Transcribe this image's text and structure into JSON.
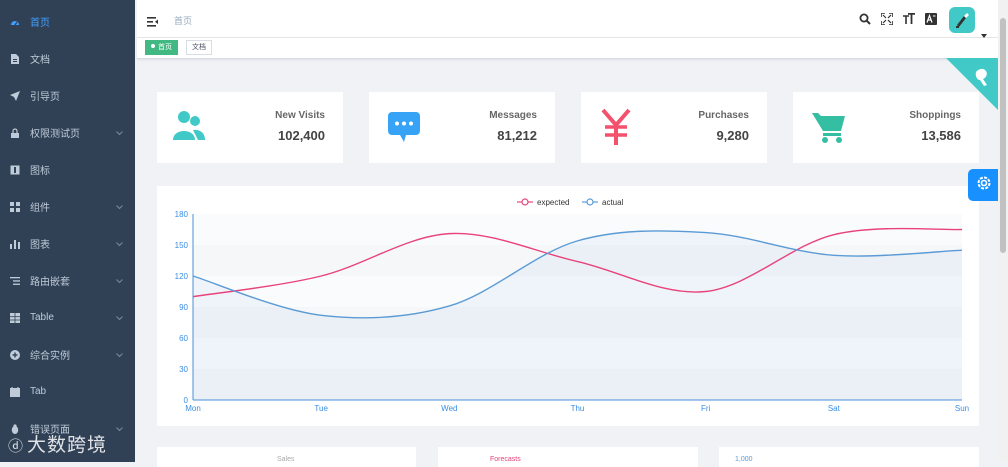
{
  "sidebar": {
    "items": [
      {
        "label": "首页",
        "icon": "dashboard-icon"
      },
      {
        "label": "文档",
        "icon": "document-icon"
      },
      {
        "label": "引导页",
        "icon": "guide-icon"
      },
      {
        "label": "权限测试页",
        "icon": "lock-icon"
      },
      {
        "label": "图标",
        "icon": "icon-icon"
      },
      {
        "label": "组件",
        "icon": "component-icon"
      },
      {
        "label": "图表",
        "icon": "chart-icon"
      },
      {
        "label": "路由嵌套",
        "icon": "nested-icon"
      },
      {
        "label": "Table",
        "icon": "table-icon"
      },
      {
        "label": "综合实例",
        "icon": "example-icon"
      },
      {
        "label": "Tab",
        "icon": "tab-icon"
      },
      {
        "label": "错误页面",
        "icon": "bug-icon"
      }
    ]
  },
  "navbar": {
    "breadcrumb": "首页"
  },
  "tags": [
    {
      "label": "首页"
    },
    {
      "label": "文档"
    }
  ],
  "panels": [
    {
      "label": "New Visits",
      "value": "102,400"
    },
    {
      "label": "Messages",
      "value": "81,212"
    },
    {
      "label": "Purchases",
      "value": "9,280"
    },
    {
      "label": "Shoppings",
      "value": "13,586"
    }
  ],
  "colors": {
    "sidebar_bg": "#304156",
    "expected": "#e8437a",
    "actual": "#5b9bd5",
    "visits": "#40c9c6",
    "messages": "#36a3f7",
    "purchases": "#f4516c",
    "shoppings": "#34bfa3"
  },
  "chart_data": {
    "type": "line",
    "categories": [
      "Mon",
      "Tue",
      "Wed",
      "Thu",
      "Fri",
      "Sat",
      "Sun"
    ],
    "series": [
      {
        "name": "expected",
        "values": [
          100,
          120,
          161,
          134,
          105,
          160,
          165
        ]
      },
      {
        "name": "actual",
        "values": [
          120,
          82,
          91,
          154,
          162,
          140,
          145
        ]
      }
    ],
    "ylim": [
      0,
      180
    ],
    "yticks": [
      "0",
      "30",
      "60",
      "90",
      "120",
      "150",
      "180"
    ],
    "legend": "top-center",
    "title": ""
  },
  "bottom_cards": [
    {
      "label": "Sales"
    },
    {
      "label": "Forecasts"
    },
    {
      "label": "1,000"
    }
  ],
  "watermark": "大数跨境"
}
